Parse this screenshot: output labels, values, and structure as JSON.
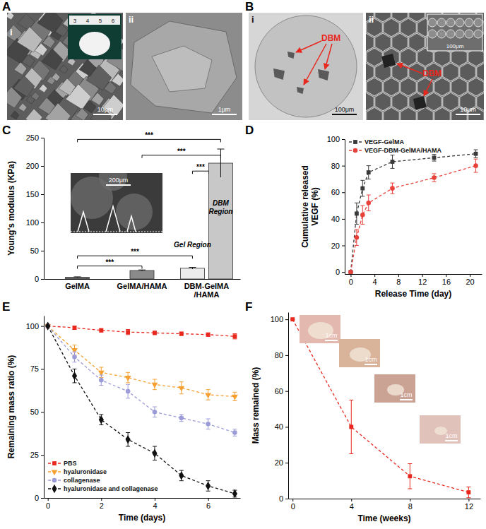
{
  "panels": [
    {
      "label": "A",
      "images": [
        {
          "sublabel": "i",
          "scale_bar": "10μm",
          "inset_ruler": [
            "3",
            "4",
            "5",
            "6"
          ]
        },
        {
          "sublabel": "ii",
          "scale_bar": "1μm"
        }
      ]
    },
    {
      "label": "B",
      "images": [
        {
          "sublabel": "i",
          "scale_bar": "100μm",
          "callout": "DBM"
        },
        {
          "sublabel": "ii",
          "scale_bar": "10μm",
          "inset_scale_bar": "100μm",
          "callout": "DBM"
        }
      ]
    },
    {
      "label": "C",
      "images": [
        {
          "scale_bar": "200μm"
        }
      ]
    },
    {
      "label": "D"
    },
    {
      "label": "E"
    },
    {
      "label": "F",
      "images": [
        {
          "scale_bar": "1cm"
        },
        {
          "scale_bar": "1cm"
        },
        {
          "scale_bar": "1cm"
        },
        {
          "scale_bar": "1cm"
        }
      ]
    }
  ],
  "chart_data": [
    {
      "type": "bar",
      "y_label": "Young's modulus (KPa)",
      "categories": [
        "GelMA",
        "GelMA/HAMA",
        "DBM-GelMA\n/HAMA"
      ],
      "ylim": [
        0,
        250
      ],
      "yticks": [
        0,
        50,
        100,
        150,
        200,
        250
      ],
      "series": [
        {
          "name": "Gel Region",
          "colors": [
            "#6e6e6e",
            "#8a8a8a",
            "#ececec"
          ],
          "values": [
            3,
            15,
            19
          ],
          "errors": [
            0.8,
            1,
            1.5
          ]
        },
        {
          "name": "DBM Region",
          "color": "#c8c8c8",
          "values": [
            null,
            null,
            205
          ],
          "errors": [
            null,
            null,
            25
          ]
        }
      ],
      "significance": [
        {
          "from": [
            0,
            0
          ],
          "to": [
            1,
            2
          ],
          "y": 247,
          "label": "***"
        },
        {
          "from": [
            0,
            1
          ],
          "to": [
            1,
            2
          ],
          "y": 219,
          "label": "***"
        },
        {
          "from": [
            0,
            2
          ],
          "to": [
            1,
            2
          ],
          "y": 191,
          "label": "***"
        },
        {
          "from": [
            0,
            0
          ],
          "to": [
            0,
            2
          ],
          "y": 41,
          "label": "***"
        },
        {
          "from": [
            0,
            0
          ],
          "to": [
            0,
            1
          ],
          "y": 23,
          "label": "***"
        }
      ]
    },
    {
      "type": "line",
      "x_label": "Release Time (day)",
      "y_label": "Cumulative released\nVEGF (%)",
      "x": [
        0,
        1,
        2,
        3,
        7,
        14,
        21
      ],
      "xlim": [
        -1,
        22
      ],
      "xticks": [
        0,
        4,
        8,
        12,
        16,
        20
      ],
      "ylim": [
        -1.5,
        100
      ],
      "yticks": [
        0,
        20,
        40,
        60,
        80,
        100
      ],
      "legend": "upper left",
      "series": [
        {
          "name": "VEGF-GelMA",
          "color": "#3a3a3a",
          "marker": "square",
          "line_style": "dashed",
          "values": [
            0,
            44,
            63,
            75,
            83,
            86,
            89
          ],
          "errors": [
            0,
            8,
            6,
            5,
            5,
            2.5,
            3
          ]
        },
        {
          "name": "VEGF-DBM-GelMA/HAMA",
          "color": "#e8413a",
          "marker": "circle",
          "line_style": "dashed",
          "values": [
            0,
            26,
            43,
            52,
            63,
            71,
            80
          ],
          "errors": [
            0,
            6,
            7,
            6,
            4,
            3,
            5
          ]
        }
      ]
    },
    {
      "type": "line",
      "x_label": "Time (days)",
      "y_label": "Remaining mass ratio (%)",
      "x": [
        0,
        1,
        2,
        3,
        4,
        5,
        6,
        7
      ],
      "xlim": [
        -0.15,
        7.2
      ],
      "xticks": [
        0,
        2,
        4,
        6
      ],
      "ylim": [
        0,
        106
      ],
      "yticks": [
        0,
        25,
        50,
        75,
        100
      ],
      "legend": "lower left",
      "series": [
        {
          "name": "PBS",
          "color": "#e8281e",
          "marker": "square",
          "line_style": "dashed",
          "values": [
            100,
            99,
            97.5,
            96.5,
            96,
            95.5,
            95,
            94
          ],
          "errors": [
            0,
            1,
            1,
            1.5,
            1,
            1,
            1,
            1.5
          ]
        },
        {
          "name": "hyaluronidase",
          "color": "#f5a030",
          "marker": "triangle-down",
          "line_style": "dashed",
          "values": [
            100,
            86,
            73,
            70,
            66,
            64,
            60,
            59
          ],
          "errors": [
            0,
            3,
            3,
            3,
            3,
            3.5,
            3,
            2.5
          ]
        },
        {
          "name": "collagenase",
          "color": "#9b9bd8",
          "marker": "circle",
          "line_style": "dashed",
          "values": [
            100,
            82,
            68.5,
            62,
            50,
            46.5,
            43,
            38
          ],
          "errors": [
            0,
            3,
            3,
            4,
            3,
            2,
            3,
            2
          ]
        },
        {
          "name": "hyaluronidase and collagenase",
          "color": "#111111",
          "marker": "diamond",
          "line_style": "dashed",
          "values": [
            100,
            71,
            45.5,
            34,
            26,
            13,
            7,
            2.5
          ],
          "errors": [
            0,
            4,
            3,
            4,
            4,
            3,
            3,
            2
          ]
        }
      ]
    },
    {
      "type": "line",
      "x_label": "Time (weeks)",
      "y_label": "Mass remained (%)",
      "x": [
        0,
        4,
        8,
        12
      ],
      "xlim": [
        -0.3,
        12.8
      ],
      "xticks": [
        0,
        4,
        8,
        12
      ],
      "ylim": [
        0,
        104
      ],
      "yticks": [
        0,
        20,
        40,
        60,
        80,
        100
      ],
      "series": [
        {
          "color": "#e8281e",
          "marker": "square",
          "line_style": "dashed",
          "values": [
            100,
            40,
            12.5,
            3.5
          ],
          "errors": [
            0,
            15,
            7,
            3
          ]
        }
      ]
    }
  ]
}
